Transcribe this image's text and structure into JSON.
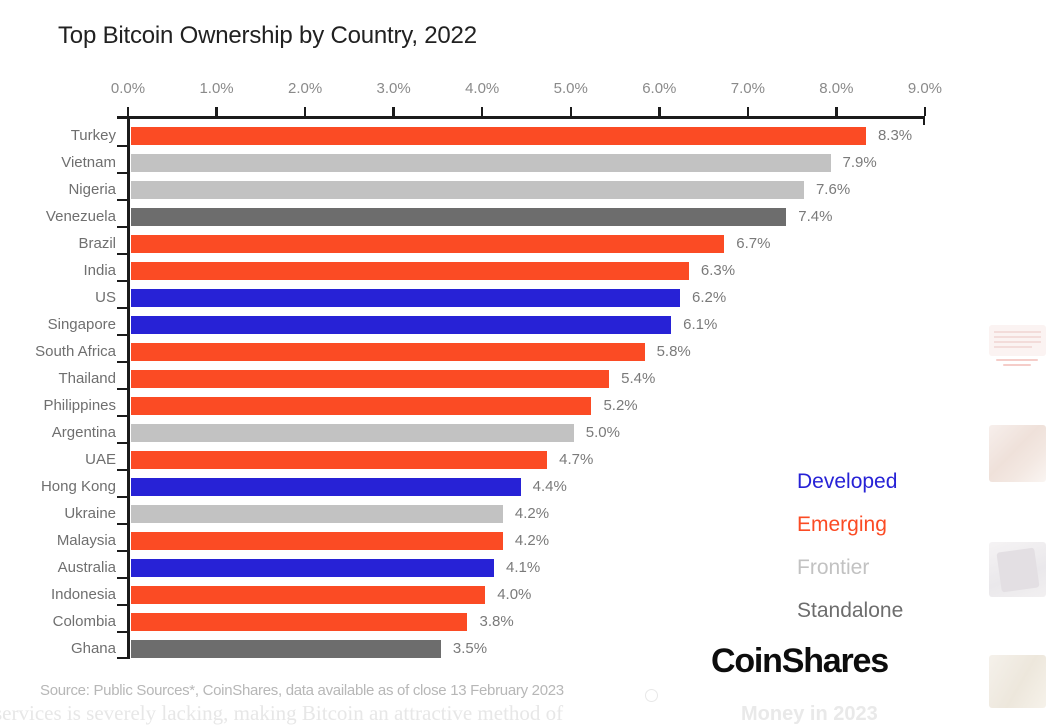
{
  "title": "Top Bitcoin Ownership by Country, 2022",
  "chart_data": {
    "type": "bar",
    "orientation": "horizontal",
    "title": "Top Bitcoin Ownership by Country, 2022",
    "xlim": [
      0,
      9
    ],
    "x_tick_labels": [
      "0.0%",
      "1.0%",
      "2.0%",
      "3.0%",
      "4.0%",
      "5.0%",
      "6.0%",
      "7.0%",
      "8.0%",
      "9.0%"
    ],
    "grid": false,
    "legend_position": "right",
    "legend": [
      {
        "label": "Developed",
        "color": "#2722d6"
      },
      {
        "label": "Emerging",
        "color": "#fb4b24"
      },
      {
        "label": "Frontier",
        "color": "#c2c2c2"
      },
      {
        "label": "Standalone",
        "color": "#6d6d6d"
      }
    ],
    "categories": [
      "Turkey",
      "Vietnam",
      "Nigeria",
      "Venezuela",
      "Brazil",
      "India",
      "US",
      "Singapore",
      "South Africa",
      "Thailand",
      "Philippines",
      "Argentina",
      "UAE",
      "Hong Kong",
      "Ukraine",
      "Malaysia",
      "Australia",
      "Indonesia",
      "Colombia",
      "Ghana"
    ],
    "values": [
      8.3,
      7.9,
      7.6,
      7.4,
      6.7,
      6.3,
      6.2,
      6.1,
      5.8,
      5.4,
      5.2,
      5.0,
      4.7,
      4.4,
      4.2,
      4.2,
      4.1,
      4.0,
      3.8,
      3.5
    ],
    "value_labels": [
      "8.3%",
      "7.9%",
      "7.6%",
      "7.4%",
      "6.7%",
      "6.3%",
      "6.2%",
      "6.1%",
      "5.8%",
      "5.4%",
      "5.2%",
      "5.0%",
      "4.7%",
      "4.4%",
      "4.2%",
      "4.2%",
      "4.1%",
      "4.0%",
      "3.8%",
      "3.5%"
    ],
    "groups": [
      "Emerging",
      "Frontier",
      "Frontier",
      "Standalone",
      "Emerging",
      "Emerging",
      "Developed",
      "Developed",
      "Emerging",
      "Emerging",
      "Emerging",
      "Frontier",
      "Emerging",
      "Developed",
      "Frontier",
      "Emerging",
      "Developed",
      "Emerging",
      "Emerging",
      "Standalone"
    ]
  },
  "branding": {
    "logo_text": "CoinShares"
  },
  "source_note": "Source: Public Sources*, CoinShares, data available as of close 13 February 2023",
  "background_text": {
    "serif_line": "services is severely lacking, making Bitcoin an attractive method of",
    "watermark": "Money in 2023"
  },
  "colors": {
    "axis": "#1b1b1b",
    "developed": "#2722d6",
    "emerging": "#fb4b24",
    "frontier": "#c2c2c2",
    "standalone": "#6d6d6d"
  }
}
